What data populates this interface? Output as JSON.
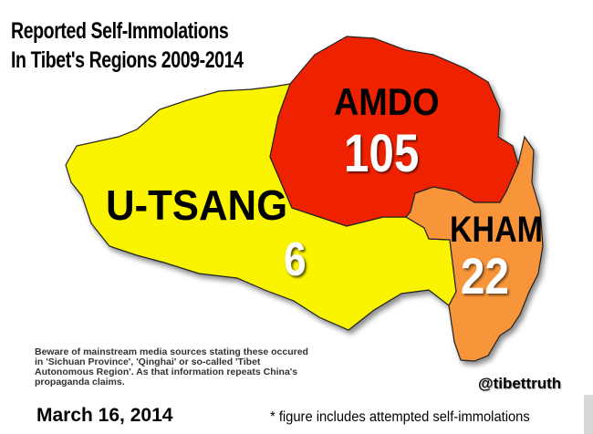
{
  "title": {
    "line1": "Reported Self-Immolations",
    "line2": "In Tibet's Regions 2009-2014"
  },
  "regions": [
    {
      "name": "AMDO",
      "count": "105",
      "color": "#ee2200"
    },
    {
      "name": "U-TSANG",
      "count": "6",
      "color": "#fbf400"
    },
    {
      "name": "KHAM",
      "count": "22",
      "color": "#f8953a"
    }
  ],
  "disclaimer": "Beware of mainstream media sources stating these occured in 'Sichuan Province', 'Qinghai' or so-called 'Tibet Autonomous Region'. As that information repeats China's propaganda claims.",
  "handle": "@tibettruth",
  "date": "March 16, 2014",
  "footnote": "* figure includes attempted self-immolations"
}
